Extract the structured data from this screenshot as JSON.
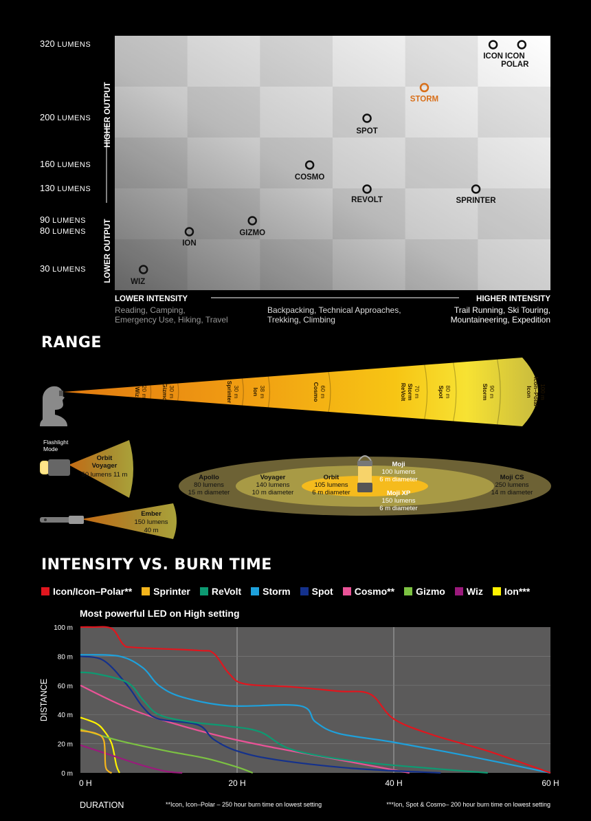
{
  "chart_data": [
    {
      "type": "scatter",
      "x_axis": {
        "low_label": "LOWER INTENSITY",
        "high_label": "HIGHER INTENSITY",
        "activities": [
          [
            "Reading, Camping,",
            "Emergency Use, Hiking, Travel"
          ],
          [
            "Backpacking, Technical Approaches,",
            "Trekking, Climbing"
          ],
          [
            "Trail Running, Ski Touring,",
            "Mountaineering, Expedition"
          ]
        ]
      },
      "y_axis": {
        "low_label": "LOWER OUTPUT",
        "high_label": "HIGHER OUTPUT",
        "unit": "LUMENS",
        "ticks": [
          30,
          80,
          90,
          130,
          160,
          200,
          320
        ]
      },
      "points": [
        {
          "label": "WIZ",
          "x": 0.5,
          "y": 30,
          "color": "#111111"
        },
        {
          "label": "ION",
          "x": 1.3,
          "y": 80,
          "color": "#111111"
        },
        {
          "label": "GIZMO",
          "x": 2.4,
          "y": 90,
          "color": "#111111"
        },
        {
          "label": "COSMO",
          "x": 3.4,
          "y": 160,
          "color": "#111111"
        },
        {
          "label": "REVOLT",
          "x": 4.4,
          "y": 130,
          "color": "#111111"
        },
        {
          "label": "SPOT",
          "x": 4.4,
          "y": 200,
          "color": "#111111"
        },
        {
          "label": "STORM",
          "x": 5.4,
          "y": 250,
          "color": "#d86f1a"
        },
        {
          "label": "SPRINTER",
          "x": 6.3,
          "y": 130,
          "color": "#111111"
        },
        {
          "label": "ICON",
          "x": 6.6,
          "y": 320,
          "color": "#111111"
        },
        {
          "label": "ICON",
          "label2": "POLAR",
          "x": 7.1,
          "y": 320,
          "color": "#111111"
        }
      ]
    },
    {
      "type": "range",
      "title": "RANGE",
      "beams": [
        {
          "name": [
            "Wiz"
          ],
          "dist": "20 m"
        },
        {
          "name": [
            "Gizmo"
          ],
          "dist": "30 m"
        },
        {
          "name": [
            "Sprinter"
          ],
          "dist": "30 m"
        },
        {
          "name": [
            "Ion"
          ],
          "dist": "38 m"
        },
        {
          "name": [
            "Cosmo"
          ],
          "dist": "60 m"
        },
        {
          "name": [
            "ReVolt",
            "Storm"
          ],
          "dist": "70 m"
        },
        {
          "name": [
            "Spot"
          ],
          "dist": "80 m"
        },
        {
          "name": [
            "Storm"
          ],
          "dist": "90 m"
        },
        {
          "name": [
            "Icon",
            "Icon–Polar"
          ],
          "dist": "100 m"
        }
      ],
      "flashlight_mode_label": [
        "Flashlight",
        "Mode"
      ],
      "flashlights": [
        {
          "name": [
            "Orbit",
            "Voyager"
          ],
          "spec": "50 lumens 11 m"
        },
        {
          "name": [
            "Ember"
          ],
          "spec": [
            "150 lumens",
            "40 m"
          ]
        }
      ],
      "lanterns": [
        {
          "name": "Apollo",
          "spec": [
            "80 lumens",
            "15 m diameter"
          ]
        },
        {
          "name": "Voyager",
          "spec": [
            "140 lumens",
            "10 m diameter"
          ]
        },
        {
          "name": "Orbit",
          "spec": [
            "105 lumens",
            "6 m diameter"
          ]
        },
        {
          "name": "Moji",
          "spec": [
            "100 lumens",
            "6 m diameter"
          ]
        },
        {
          "name": "Moji XP",
          "spec": [
            "150 lumens",
            "6 m diameter"
          ]
        },
        {
          "name": "Moji CS",
          "spec": [
            "250 lumens",
            "14 m diameter"
          ]
        }
      ]
    },
    {
      "type": "line",
      "title": "INTENSITY VS. BURN TIME",
      "subtitle": "Most powerful LED on High setting",
      "ylabel": "DISTANCE",
      "xlabel": "DURATION",
      "xlim": [
        0,
        60
      ],
      "ylim": [
        0,
        100
      ],
      "xticks": [
        "0 H",
        "20 H",
        "40 H",
        "60 H"
      ],
      "yticks": [
        "0 m",
        "20 m",
        "40 m",
        "60 m",
        "80 m",
        "100 m"
      ],
      "footnotes": [
        "**Icon, Icon–Polar – 250 hour burn time on lowest setting",
        "***Ion, Spot & Cosmo– 200 hour burn time on lowest setting"
      ],
      "series": [
        {
          "name": "Icon/Icon–Polar**",
          "color": "#e0161e",
          "points": [
            [
              0,
              100
            ],
            [
              1.5,
              100
            ],
            [
              4,
              99
            ],
            [
              5.5,
              88
            ],
            [
              7,
              86
            ],
            [
              15,
              84
            ],
            [
              17,
              82
            ],
            [
              19,
              68
            ],
            [
              21,
              61
            ],
            [
              27,
              59
            ],
            [
              33,
              56
            ],
            [
              37,
              54
            ],
            [
              40,
              37
            ],
            [
              45,
              26
            ],
            [
              52,
              15
            ],
            [
              60,
              0
            ]
          ]
        },
        {
          "name": "Sprinter",
          "color": "#f5b51c",
          "points": [
            [
              0,
              29
            ],
            [
              2,
              27
            ],
            [
              3,
              22
            ],
            [
              3.2,
              5
            ],
            [
              3.6,
              1
            ],
            [
              4,
              0
            ]
          ]
        },
        {
          "name": "ReVolt",
          "color": "#0d9a72",
          "points": [
            [
              0,
              69
            ],
            [
              2,
              68
            ],
            [
              6,
              62
            ],
            [
              8,
              50
            ],
            [
              10,
              40
            ],
            [
              14,
              35
            ],
            [
              19,
              32
            ],
            [
              23,
              28
            ],
            [
              27,
              16
            ],
            [
              35,
              8
            ],
            [
              45,
              3
            ],
            [
              52,
              0
            ]
          ]
        },
        {
          "name": "Storm",
          "color": "#1ea1dc",
          "points": [
            [
              0,
              81
            ],
            [
              5,
              80
            ],
            [
              8,
              72
            ],
            [
              10,
              60
            ],
            [
              13,
              52
            ],
            [
              19,
              46
            ],
            [
              28,
              46
            ],
            [
              30,
              35
            ],
            [
              33,
              27
            ],
            [
              40,
              21
            ],
            [
              50,
              11
            ],
            [
              60,
              0
            ]
          ]
        },
        {
          "name": "Spot",
          "color": "#14318c",
          "points": [
            [
              0,
              80
            ],
            [
              3,
              77
            ],
            [
              6,
              60
            ],
            [
              8,
              45
            ],
            [
              10,
              37
            ],
            [
              15,
              33
            ],
            [
              17,
              23
            ],
            [
              20,
              15
            ],
            [
              25,
              9
            ],
            [
              35,
              3
            ],
            [
              46,
              0
            ]
          ]
        },
        {
          "name": "Cosmo**",
          "color": "#ea5397",
          "points": [
            [
              0,
              60
            ],
            [
              5,
              47
            ],
            [
              10,
              37
            ],
            [
              18,
              25
            ],
            [
              25,
              17
            ],
            [
              35,
              7
            ],
            [
              42,
              0
            ]
          ]
        },
        {
          "name": "Gizmo",
          "color": "#7cc242",
          "points": [
            [
              0,
              30
            ],
            [
              5,
              22
            ],
            [
              11,
              15
            ],
            [
              16,
              10
            ],
            [
              20,
              4
            ],
            [
              22,
              0
            ]
          ]
        },
        {
          "name": "Wiz",
          "color": "#9b1a7c",
          "points": [
            [
              0,
              19
            ],
            [
              4,
              12
            ],
            [
              8,
              5
            ],
            [
              11,
              1
            ],
            [
              13,
              0
            ]
          ]
        },
        {
          "name": "Ion***",
          "color": "#fff200",
          "points": [
            [
              0,
              38
            ],
            [
              2,
              34
            ],
            [
              3,
              29
            ],
            [
              4,
              20
            ],
            [
              4.6,
              5
            ],
            [
              5,
              0
            ]
          ]
        }
      ]
    }
  ]
}
